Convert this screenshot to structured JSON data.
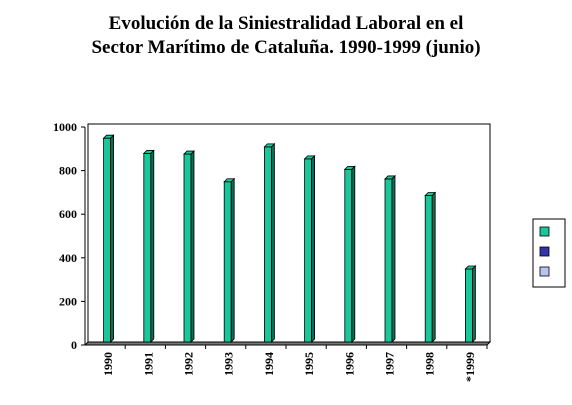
{
  "colors": {
    "series_main": "#19c79a",
    "legend_2": "#3333aa",
    "legend_3": "#b8c4f0"
  },
  "chart_data": {
    "type": "bar",
    "title_line1": "Evolución de la Siniestralidad Laboral en el",
    "title_line2": "Sector Marítimo de Cataluña. 1990-1999 (junio)",
    "xlabel": "",
    "ylabel": "",
    "ylim": [
      0,
      1000
    ],
    "yticks": [
      0,
      200,
      400,
      600,
      800,
      1000
    ],
    "grid": true,
    "legend_position": "right",
    "categories": [
      "1990",
      "1991",
      "1992",
      "1993",
      "1994",
      "1995",
      "1996",
      "1997",
      "1998",
      "*1999"
    ],
    "series": [
      {
        "values": [
          935,
          865,
          862,
          735,
          895,
          840,
          792,
          748,
          672,
          335
        ]
      }
    ]
  }
}
